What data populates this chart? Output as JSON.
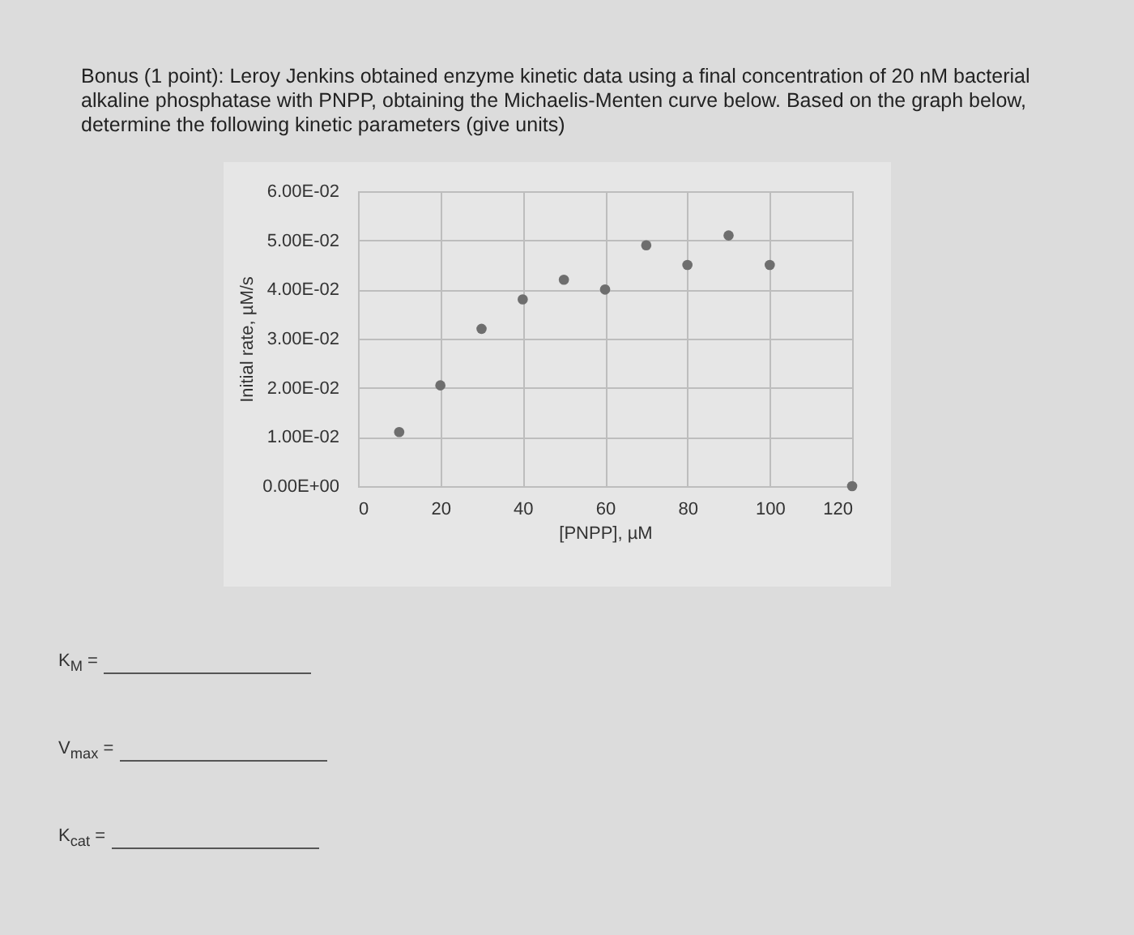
{
  "chart_data": {
    "type": "scatter",
    "title": "Bonus (1 point): Leroy Jenkins obtained enzyme kinetic data using a final concentration of 20 nM bacterial alkaline phosphatase with PNPP, obtaining the Michaelis-Menten curve below. Based on the graph below, determine the following kinetic parameters (give units)",
    "xlabel": "[PNPP], µM",
    "ylabel": "Initial rate, µM/s",
    "series": [
      {
        "color": "#6e6e6e",
        "x": [
          10,
          20,
          30,
          40,
          50,
          60,
          70,
          80,
          90,
          100,
          120
        ],
        "values": [
          0.011,
          0.0205,
          0.032,
          0.038,
          0.042,
          0.04,
          0.049,
          0.045,
          0.051,
          0.045,
          0
        ]
      }
    ],
    "xlim": [
      0,
      120
    ],
    "xticks": [
      0,
      20,
      40,
      60,
      80,
      100,
      120
    ],
    "ylim": [
      0,
      0.06
    ],
    "yticks": [
      {
        "value": 0,
        "label": "0.00E+00"
      },
      {
        "value": 0.01,
        "label": "1.00E-02"
      },
      {
        "value": 0.02,
        "label": "2.00E-02"
      },
      {
        "value": 0.03,
        "label": "3.00E-02"
      },
      {
        "value": 0.04,
        "label": "4.00E-02"
      },
      {
        "value": 0.05,
        "label": "5.00E-02"
      },
      {
        "value": 0.06,
        "label": "6.00E-02"
      }
    ],
    "grid": true,
    "marker": "circle",
    "annotations": [
      "K$_{M}$ =",
      "V$_{max}$ =",
      "K$_{cat}$ ="
    ]
  }
}
